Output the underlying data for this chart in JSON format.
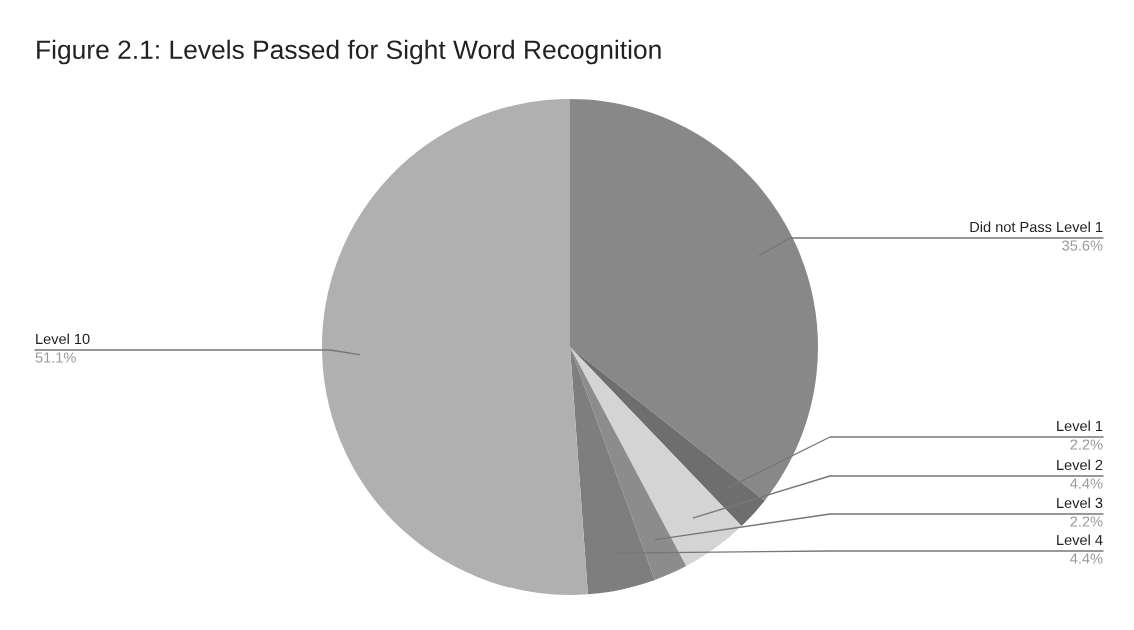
{
  "chart_data": {
    "type": "pie",
    "title": "Figure 2.1: Levels Passed for Sight Word Recognition",
    "categories": [
      "Did not Pass Level 1",
      "Level 1",
      "Level 2",
      "Level 3",
      "Level 4",
      "Level 10"
    ],
    "values": [
      35.6,
      2.2,
      4.4,
      2.2,
      4.4,
      51.1
    ],
    "colors": [
      "#888888",
      "#6e6e6e",
      "#d4d4d4",
      "#8c8c8c",
      "#7e7e7e",
      "#b0b0b0"
    ],
    "value_labels": [
      "35.6%",
      "2.2%",
      "4.4%",
      "2.2%",
      "4.4%",
      "51.1%"
    ],
    "legend": false
  }
}
